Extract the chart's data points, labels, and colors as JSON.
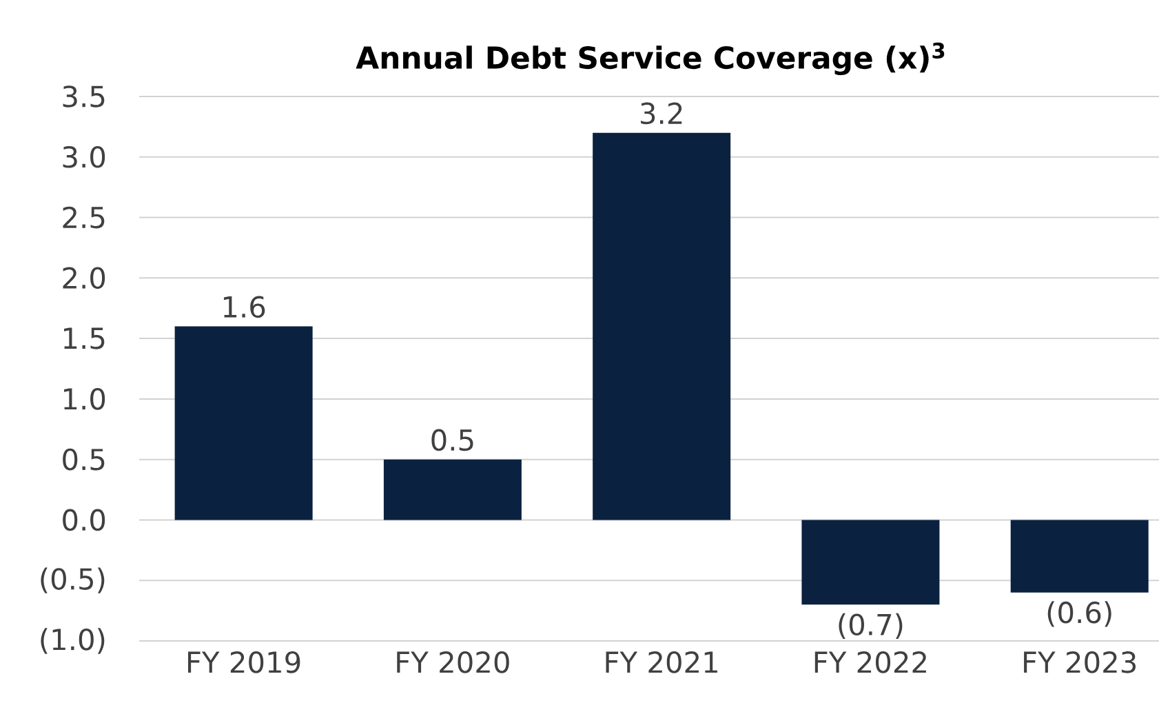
{
  "chart_data": {
    "type": "bar",
    "title": "Annual Debt Service Coverage (x)$^{3}$",
    "categories": [
      "FY 2019",
      "FY 2020",
      "FY 2021",
      "FY 2022",
      "FY 2023"
    ],
    "values": [
      1.6,
      0.5,
      3.2,
      -0.7,
      -0.6
    ],
    "value_labels": [
      "1.6",
      "0.5",
      "3.2",
      "(0.7)",
      "(0.6)"
    ],
    "color": "#0a2240",
    "ylim": [
      -1.0,
      3.5
    ],
    "yticks": [
      {
        "value": -1.0,
        "label": "(1.0)"
      },
      {
        "value": -0.5,
        "label": "(0.5)"
      },
      {
        "value": 0.0,
        "label": "0.0"
      },
      {
        "value": 0.5,
        "label": "0.5"
      },
      {
        "value": 1.0,
        "label": "1.0"
      },
      {
        "value": 1.5,
        "label": "1.5"
      },
      {
        "value": 2.0,
        "label": "2.0"
      },
      {
        "value": 2.5,
        "label": "2.5"
      },
      {
        "value": 3.0,
        "label": "3.0"
      },
      {
        "value": 3.5,
        "label": "3.5"
      }
    ],
    "grid": "y"
  }
}
